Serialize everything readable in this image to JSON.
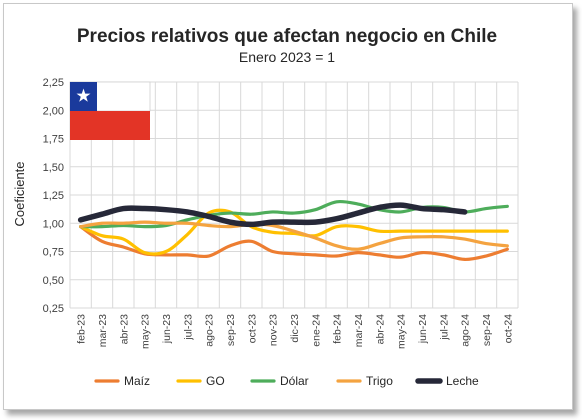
{
  "chart_data": {
    "type": "line",
    "title": "Precios relativos que afectan negocio en Chile",
    "subtitle": "Enero 2023 = 1",
    "ylabel": "Coeficiente",
    "xlabel": "",
    "ylim": [
      0.25,
      2.25
    ],
    "yticks": [
      "0,25",
      "0,50",
      "0,75",
      "1,00",
      "1,25",
      "1,50",
      "1,75",
      "2,00",
      "2,25"
    ],
    "grid": true,
    "legend_position": "bottom",
    "categories": [
      "feb-23",
      "mar-23",
      "abr-23",
      "may-23",
      "jun-23",
      "jul-23",
      "ago-23",
      "sep-23",
      "oct-23",
      "nov-23",
      "dic-23",
      "ene-24",
      "feb-24",
      "mar-24",
      "abr-24",
      "may-24",
      "jun-24",
      "jul-24",
      "ago-24",
      "sep-24",
      "oct-24"
    ],
    "series": [
      {
        "name": "Maíz",
        "color": "#ed7d31",
        "values": [
          0.97,
          0.84,
          0.79,
          0.73,
          0.72,
          0.72,
          0.71,
          0.8,
          0.84,
          0.75,
          0.73,
          0.72,
          0.71,
          0.74,
          0.72,
          0.7,
          0.74,
          0.72,
          0.68,
          0.71,
          0.77
        ]
      },
      {
        "name": "GO",
        "color": "#ffc000",
        "values": [
          0.97,
          0.89,
          0.86,
          0.74,
          0.75,
          0.9,
          1.09,
          1.1,
          0.97,
          0.92,
          0.91,
          0.89,
          0.97,
          0.97,
          0.93,
          0.93,
          0.93,
          0.93,
          0.93,
          0.93,
          0.93
        ]
      },
      {
        "name": "Dólar",
        "color": "#4ead5b",
        "values": [
          0.97,
          0.97,
          0.98,
          0.97,
          0.98,
          1.03,
          1.07,
          1.09,
          1.08,
          1.1,
          1.09,
          1.12,
          1.19,
          1.17,
          1.12,
          1.1,
          1.14,
          1.14,
          1.1,
          1.13,
          1.15
        ]
      },
      {
        "name": "Trigo",
        "color": "#f4a340",
        "values": [
          0.97,
          1.0,
          1.0,
          1.01,
          1.0,
          1.0,
          0.98,
          0.97,
          0.99,
          0.98,
          0.93,
          0.87,
          0.8,
          0.77,
          0.82,
          0.87,
          0.88,
          0.88,
          0.86,
          0.82,
          0.8
        ]
      },
      {
        "name": "Leche",
        "color": "#262838",
        "values": [
          1.03,
          1.08,
          1.13,
          1.13,
          1.12,
          1.1,
          1.06,
          1.01,
          0.99,
          1.01,
          1.01,
          1.01,
          1.04,
          1.09,
          1.14,
          1.16,
          1.13,
          1.12,
          1.1,
          null,
          null
        ]
      }
    ]
  }
}
